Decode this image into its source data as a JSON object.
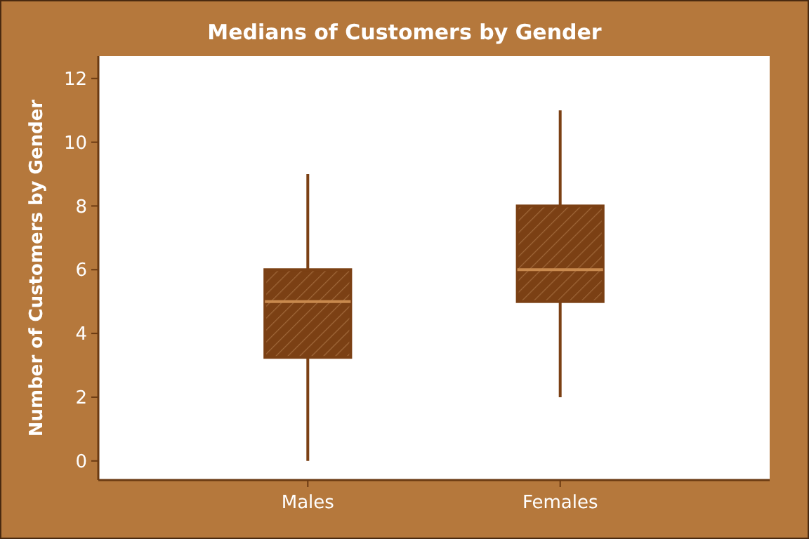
{
  "chart_data": {
    "type": "box",
    "title": "Medians of Customers by Gender",
    "ylabel": "Number of Customers by Gender",
    "categories": [
      "Males",
      "Females"
    ],
    "boxes": [
      {
        "low": 0,
        "q1": 3.25,
        "median": 5,
        "q3": 6,
        "high": 9
      },
      {
        "low": 2,
        "q1": 5,
        "median": 6,
        "q3": 8,
        "high": 11
      }
    ],
    "color": "#7b4014",
    "ylim": [
      -0.6,
      12.7
    ],
    "yticks": [
      0,
      2,
      4,
      6,
      8,
      10,
      12
    ],
    "grid": false
  }
}
